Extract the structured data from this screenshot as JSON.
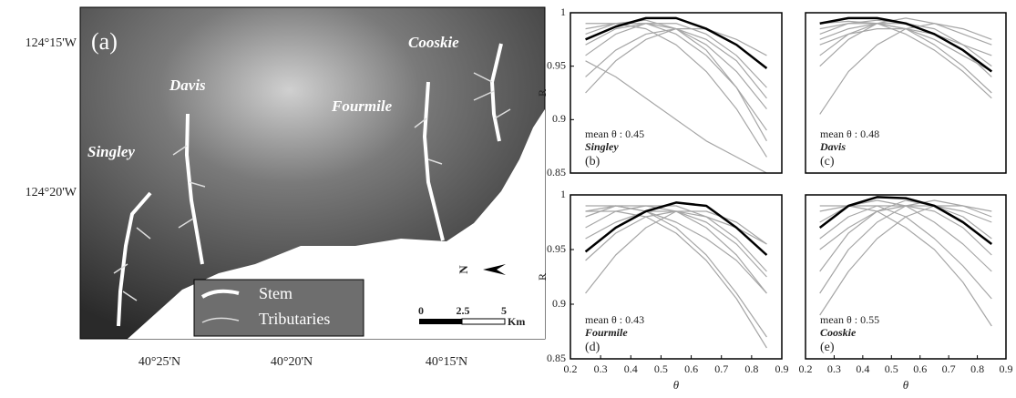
{
  "map": {
    "panel_label": "(a)",
    "lat_labels": [
      "124°15'W",
      "124°20'W"
    ],
    "lon_labels": [
      "40°25'N",
      "40°20'N",
      "40°15'N"
    ],
    "places": [
      "Davis",
      "Singley",
      "Fourmile",
      "Cooskie"
    ],
    "legend": [
      "Stem",
      "Tributaries"
    ],
    "scale": {
      "ticks": [
        "0",
        "2.5",
        "5"
      ],
      "unit": "Km"
    },
    "north": "N"
  },
  "chart_data": [
    {
      "type": "line",
      "panel": "(b)",
      "annotation": "mean θ : 0.45",
      "name": "Singley",
      "ylabel": "R",
      "xlim": [
        0.2,
        0.9
      ],
      "ylim": [
        0.85,
        1
      ],
      "yticks": [
        0.85,
        0.9,
        0.95,
        1
      ],
      "x": [
        0.25,
        0.35,
        0.45,
        0.55,
        0.65,
        0.75,
        0.85
      ],
      "series": [
        {
          "color": "#a6a6a6",
          "values": [
            0.96,
            0.98,
            0.99,
            0.99,
            0.98,
            0.96,
            0.93
          ]
        },
        {
          "color": "#a6a6a6",
          "values": [
            0.94,
            0.965,
            0.98,
            0.985,
            0.975,
            0.955,
            0.92
          ]
        },
        {
          "color": "#a6a6a6",
          "values": [
            0.98,
            0.99,
            0.993,
            0.985,
            0.97,
            0.945,
            0.91
          ]
        },
        {
          "color": "#a6a6a6",
          "values": [
            0.925,
            0.955,
            0.975,
            0.985,
            0.985,
            0.975,
            0.96
          ]
        },
        {
          "color": "#a6a6a6",
          "values": [
            0.97,
            0.985,
            0.99,
            0.985,
            0.965,
            0.93,
            0.88
          ]
        },
        {
          "color": "#a6a6a6",
          "values": [
            0.985,
            0.99,
            0.99,
            0.98,
            0.96,
            0.93,
            0.89
          ]
        },
        {
          "color": "#a6a6a6",
          "values": [
            0.99,
            0.99,
            0.985,
            0.97,
            0.945,
            0.91,
            0.865
          ]
        },
        {
          "color": "#a6a6a6",
          "values": [
            0.955,
            0.94,
            0.92,
            0.9,
            0.88,
            0.865,
            0.85
          ]
        },
        {
          "color": "#000000",
          "values": [
            0.975,
            0.987,
            0.995,
            0.995,
            0.985,
            0.97,
            0.948
          ]
        }
      ]
    },
    {
      "type": "line",
      "panel": "(c)",
      "annotation": "mean θ : 0.48",
      "name": "Davis",
      "xlim": [
        0.2,
        0.9
      ],
      "ylim": [
        0.85,
        1
      ],
      "x": [
        0.25,
        0.35,
        0.45,
        0.55,
        0.65,
        0.75,
        0.85
      ],
      "series": [
        {
          "color": "#a6a6a6",
          "values": [
            0.96,
            0.98,
            0.99,
            0.99,
            0.985,
            0.97,
            0.95
          ]
        },
        {
          "color": "#a6a6a6",
          "values": [
            0.98,
            0.99,
            0.993,
            0.99,
            0.98,
            0.965,
            0.94
          ]
        },
        {
          "color": "#a6a6a6",
          "values": [
            0.985,
            0.99,
            0.99,
            0.985,
            0.975,
            0.96,
            0.945
          ]
        },
        {
          "color": "#a6a6a6",
          "values": [
            0.99,
            0.992,
            0.99,
            0.98,
            0.965,
            0.945,
            0.92
          ]
        },
        {
          "color": "#a6a6a6",
          "values": [
            0.95,
            0.975,
            0.99,
            0.995,
            0.99,
            0.98,
            0.97
          ]
        },
        {
          "color": "#a6a6a6",
          "values": [
            0.905,
            0.945,
            0.97,
            0.985,
            0.99,
            0.985,
            0.975
          ]
        },
        {
          "color": "#a6a6a6",
          "values": [
            0.975,
            0.985,
            0.99,
            0.985,
            0.97,
            0.95,
            0.925
          ]
        },
        {
          "color": "#a6a6a6",
          "values": [
            0.97,
            0.98,
            0.985,
            0.985,
            0.98,
            0.97,
            0.96
          ]
        },
        {
          "color": "#000000",
          "values": [
            0.99,
            0.995,
            0.995,
            0.99,
            0.98,
            0.965,
            0.945
          ]
        }
      ]
    },
    {
      "type": "line",
      "panel": "(d)",
      "annotation": "mean θ : 0.43",
      "name": "Fourmile",
      "ylabel": "R",
      "xlabel": "θ",
      "xlim": [
        0.2,
        0.9
      ],
      "ylim": [
        0.85,
        1
      ],
      "yticks": [
        0.85,
        0.9,
        0.95,
        1
      ],
      "xticks": [
        0.2,
        0.3,
        0.4,
        0.5,
        0.6,
        0.7,
        0.8,
        0.9
      ],
      "x": [
        0.25,
        0.35,
        0.45,
        0.55,
        0.65,
        0.75,
        0.85
      ],
      "series": [
        {
          "color": "#a6a6a6",
          "values": [
            0.98,
            0.99,
            0.99,
            0.985,
            0.97,
            0.945,
            0.91
          ]
        },
        {
          "color": "#a6a6a6",
          "values": [
            0.985,
            0.99,
            0.985,
            0.97,
            0.945,
            0.91,
            0.87
          ]
        },
        {
          "color": "#a6a6a6",
          "values": [
            0.97,
            0.985,
            0.99,
            0.99,
            0.98,
            0.96,
            0.93
          ]
        },
        {
          "color": "#a6a6a6",
          "values": [
            0.96,
            0.975,
            0.985,
            0.985,
            0.975,
            0.955,
            0.925
          ]
        },
        {
          "color": "#a6a6a6",
          "values": [
            0.99,
            0.99,
            0.985,
            0.975,
            0.96,
            0.94,
            0.91
          ]
        },
        {
          "color": "#a6a6a6",
          "values": [
            0.94,
            0.965,
            0.98,
            0.985,
            0.98,
            0.97,
            0.955
          ]
        },
        {
          "color": "#a6a6a6",
          "values": [
            0.91,
            0.945,
            0.97,
            0.985,
            0.985,
            0.975,
            0.955
          ]
        },
        {
          "color": "#a6a6a6",
          "values": [
            0.985,
            0.985,
            0.98,
            0.965,
            0.94,
            0.905,
            0.86
          ]
        },
        {
          "color": "#000000",
          "values": [
            0.948,
            0.97,
            0.985,
            0.993,
            0.99,
            0.97,
            0.945
          ]
        }
      ]
    },
    {
      "type": "line",
      "panel": "(e)",
      "annotation": "mean θ : 0.55",
      "name": "Cooskie",
      "xlabel": "θ",
      "xlim": [
        0.2,
        0.9
      ],
      "ylim": [
        0.85,
        1
      ],
      "xticks": [
        0.2,
        0.3,
        0.4,
        0.5,
        0.6,
        0.7,
        0.8,
        0.9
      ],
      "x": [
        0.25,
        0.35,
        0.45,
        0.55,
        0.65,
        0.75,
        0.85
      ],
      "series": [
        {
          "color": "#a6a6a6",
          "values": [
            0.93,
            0.965,
            0.985,
            0.995,
            0.99,
            0.98,
            0.96
          ]
        },
        {
          "color": "#a6a6a6",
          "values": [
            0.96,
            0.98,
            0.99,
            0.99,
            0.985,
            0.97,
            0.945
          ]
        },
        {
          "color": "#a6a6a6",
          "values": [
            0.985,
            0.99,
            0.99,
            0.98,
            0.96,
            0.935,
            0.905
          ]
        },
        {
          "color": "#a6a6a6",
          "values": [
            0.91,
            0.95,
            0.975,
            0.99,
            0.995,
            0.99,
            0.98
          ]
        },
        {
          "color": "#a6a6a6",
          "values": [
            0.975,
            0.99,
            0.995,
            0.99,
            0.975,
            0.955,
            0.93
          ]
        },
        {
          "color": "#a6a6a6",
          "values": [
            0.99,
            0.99,
            0.985,
            0.97,
            0.95,
            0.92,
            0.88
          ]
        },
        {
          "color": "#a6a6a6",
          "values": [
            0.95,
            0.97,
            0.985,
            0.99,
            0.99,
            0.985,
            0.975
          ]
        },
        {
          "color": "#a6a6a6",
          "values": [
            0.89,
            0.93,
            0.96,
            0.98,
            0.99,
            0.99,
            0.985
          ]
        },
        {
          "color": "#000000",
          "values": [
            0.97,
            0.99,
            0.998,
            0.997,
            0.99,
            0.975,
            0.955
          ]
        }
      ]
    }
  ]
}
